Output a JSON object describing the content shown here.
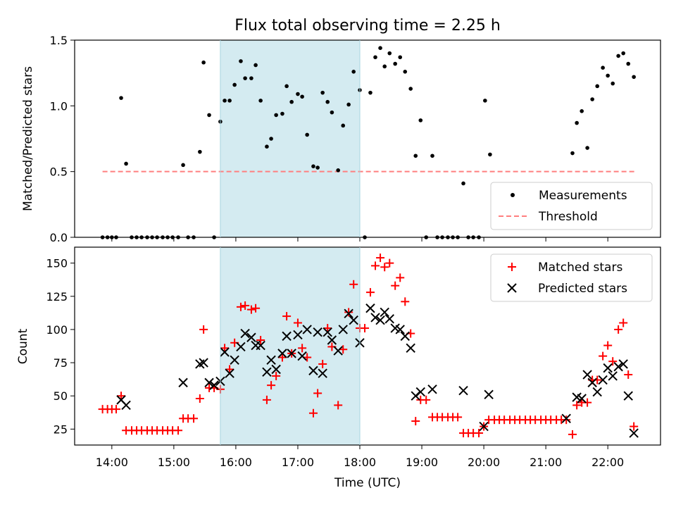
{
  "chart_data": [
    {
      "type": "scatter",
      "title": "Flux total observing time = 2.25 h",
      "xlabel": "",
      "ylabel": "Matched/Predicted stars",
      "xlim_hours": [
        13.4,
        22.85
      ],
      "ylim": [
        0,
        1.5
      ],
      "yticks": [
        "0.0",
        "0.5",
        "1.0",
        "1.5"
      ],
      "shaded_span_hours": [
        15.75,
        18.0
      ],
      "shade_color": "#d4ebf1",
      "legend_position": "lower-right",
      "series": [
        {
          "name": "Measurements",
          "marker": "dot",
          "color": "#000000",
          "points": [
            [
              13.85,
              0
            ],
            [
              13.93,
              0
            ],
            [
              14.0,
              0
            ],
            [
              14.07,
              0
            ],
            [
              14.15,
              1.06
            ],
            [
              14.23,
              0.56
            ],
            [
              14.32,
              0
            ],
            [
              14.4,
              0
            ],
            [
              14.48,
              0
            ],
            [
              14.57,
              0
            ],
            [
              14.65,
              0
            ],
            [
              14.73,
              0
            ],
            [
              14.82,
              0
            ],
            [
              14.9,
              0
            ],
            [
              14.98,
              0
            ],
            [
              15.07,
              0
            ],
            [
              15.15,
              0.55
            ],
            [
              15.23,
              0
            ],
            [
              15.32,
              0
            ],
            [
              15.42,
              0.65
            ],
            [
              15.48,
              1.33
            ],
            [
              15.57,
              0.93
            ],
            [
              15.65,
              0
            ],
            [
              15.75,
              0.88
            ],
            [
              15.82,
              1.04
            ],
            [
              15.9,
              1.04
            ],
            [
              15.98,
              1.16
            ],
            [
              16.08,
              1.34
            ],
            [
              16.15,
              1.21
            ],
            [
              16.25,
              1.21
            ],
            [
              16.32,
              1.31
            ],
            [
              16.4,
              1.04
            ],
            [
              16.5,
              0.69
            ],
            [
              16.57,
              0.75
            ],
            [
              16.65,
              0.93
            ],
            [
              16.75,
              0.94
            ],
            [
              16.82,
              1.15
            ],
            [
              16.9,
              1.03
            ],
            [
              17.0,
              1.09
            ],
            [
              17.07,
              1.07
            ],
            [
              17.15,
              0.78
            ],
            [
              17.25,
              0.54
            ],
            [
              17.32,
              0.53
            ],
            [
              17.4,
              1.1
            ],
            [
              17.48,
              1.03
            ],
            [
              17.55,
              0.95
            ],
            [
              17.65,
              0.51
            ],
            [
              17.73,
              0.85
            ],
            [
              17.82,
              1.01
            ],
            [
              17.9,
              1.26
            ],
            [
              18.0,
              1.12
            ],
            [
              18.08,
              0
            ],
            [
              18.17,
              1.1
            ],
            [
              18.25,
              1.37
            ],
            [
              18.33,
              1.44
            ],
            [
              18.4,
              1.3
            ],
            [
              18.48,
              1.4
            ],
            [
              18.57,
              1.32
            ],
            [
              18.65,
              1.37
            ],
            [
              18.73,
              1.26
            ],
            [
              18.82,
              1.13
            ],
            [
              18.9,
              0.62
            ],
            [
              18.98,
              0.89
            ],
            [
              19.07,
              0
            ],
            [
              19.17,
              0.62
            ],
            [
              19.25,
              0
            ],
            [
              19.33,
              0
            ],
            [
              19.42,
              0
            ],
            [
              19.5,
              0
            ],
            [
              19.58,
              0
            ],
            [
              19.67,
              0.41
            ],
            [
              19.75,
              0
            ],
            [
              19.83,
              0
            ],
            [
              19.92,
              0
            ],
            [
              20.02,
              1.04
            ],
            [
              20.1,
              0.63
            ],
            [
              21.43,
              0.64
            ],
            [
              21.5,
              0.87
            ],
            [
              21.58,
              0.96
            ],
            [
              21.67,
              0.68
            ],
            [
              21.75,
              1.05
            ],
            [
              21.83,
              1.15
            ],
            [
              21.92,
              1.29
            ],
            [
              22.0,
              1.23
            ],
            [
              22.08,
              1.17
            ],
            [
              22.17,
              1.38
            ],
            [
              22.25,
              1.4
            ],
            [
              22.33,
              1.32
            ],
            [
              22.42,
              1.22
            ]
          ]
        },
        {
          "name": "Threshold",
          "marker": "dashed-line",
          "color": "#ff7f7f",
          "points": [
            [
              13.85,
              0.5
            ],
            [
              22.43,
              0.5
            ]
          ]
        }
      ]
    },
    {
      "type": "scatter",
      "title": "",
      "xlabel": "Time (UTC)",
      "ylabel": "Count",
      "xlim_hours": [
        13.4,
        22.85
      ],
      "ylim": [
        13,
        162
      ],
      "yticks": [
        "25",
        "50",
        "75",
        "100",
        "125",
        "150"
      ],
      "xticks": [
        "14:00",
        "15:00",
        "16:00",
        "17:00",
        "18:00",
        "19:00",
        "20:00",
        "21:00",
        "22:00"
      ],
      "shaded_span_hours": [
        15.75,
        18.0
      ],
      "shade_color": "#d4ebf1",
      "legend_position": "upper-right",
      "series": [
        {
          "name": "Matched stars",
          "marker": "plus",
          "color": "#ff0000",
          "points": [
            [
              13.85,
              40
            ],
            [
              13.93,
              40
            ],
            [
              14.0,
              40
            ],
            [
              14.07,
              40
            ],
            [
              14.15,
              50
            ],
            [
              14.23,
              24
            ],
            [
              14.32,
              24
            ],
            [
              14.4,
              24
            ],
            [
              14.48,
              24
            ],
            [
              14.57,
              24
            ],
            [
              14.65,
              24
            ],
            [
              14.73,
              24
            ],
            [
              14.82,
              24
            ],
            [
              14.9,
              24
            ],
            [
              14.98,
              24
            ],
            [
              15.07,
              24
            ],
            [
              15.15,
              33
            ],
            [
              15.23,
              33
            ],
            [
              15.32,
              33
            ],
            [
              15.42,
              48
            ],
            [
              15.48,
              100
            ],
            [
              15.57,
              56
            ],
            [
              15.65,
              56
            ],
            [
              15.75,
              55
            ],
            [
              15.82,
              86
            ],
            [
              15.9,
              70
            ],
            [
              15.98,
              90
            ],
            [
              16.08,
              117
            ],
            [
              16.15,
              118
            ],
            [
              16.25,
              115
            ],
            [
              16.32,
              116
            ],
            [
              16.4,
              92
            ],
            [
              16.5,
              47
            ],
            [
              16.57,
              58
            ],
            [
              16.65,
              65
            ],
            [
              16.75,
              79
            ],
            [
              16.82,
              110
            ],
            [
              16.9,
              82
            ],
            [
              17.0,
              105
            ],
            [
              17.07,
              86
            ],
            [
              17.15,
              79
            ],
            [
              17.25,
              37
            ],
            [
              17.32,
              52
            ],
            [
              17.4,
              74
            ],
            [
              17.48,
              101
            ],
            [
              17.55,
              87
            ],
            [
              17.65,
              43
            ],
            [
              17.73,
              85
            ],
            [
              17.82,
              113
            ],
            [
              17.9,
              134
            ],
            [
              18.0,
              101
            ],
            [
              18.08,
              101
            ],
            [
              18.17,
              128
            ],
            [
              18.25,
              148
            ],
            [
              18.33,
              154
            ],
            [
              18.4,
              147
            ],
            [
              18.48,
              150
            ],
            [
              18.57,
              133
            ],
            [
              18.65,
              139
            ],
            [
              18.73,
              121
            ],
            [
              18.82,
              97
            ],
            [
              18.9,
              31
            ],
            [
              18.98,
              47
            ],
            [
              19.07,
              47
            ],
            [
              19.17,
              34
            ],
            [
              19.25,
              34
            ],
            [
              19.33,
              34
            ],
            [
              19.42,
              34
            ],
            [
              19.5,
              34
            ],
            [
              19.58,
              34
            ],
            [
              19.67,
              22
            ],
            [
              19.75,
              22
            ],
            [
              19.83,
              22
            ],
            [
              19.92,
              22
            ],
            [
              20.0,
              27
            ],
            [
              20.08,
              32
            ],
            [
              20.17,
              32
            ],
            [
              20.25,
              32
            ],
            [
              20.33,
              32
            ],
            [
              20.42,
              32
            ],
            [
              20.5,
              32
            ],
            [
              20.58,
              32
            ],
            [
              20.67,
              32
            ],
            [
              20.75,
              32
            ],
            [
              20.83,
              32
            ],
            [
              20.92,
              32
            ],
            [
              21.0,
              32
            ],
            [
              21.08,
              32
            ],
            [
              21.17,
              32
            ],
            [
              21.25,
              32
            ],
            [
              21.33,
              32
            ],
            [
              21.43,
              21
            ],
            [
              21.5,
              43
            ],
            [
              21.58,
              45
            ],
            [
              21.67,
              45
            ],
            [
              21.75,
              62
            ],
            [
              21.83,
              62
            ],
            [
              21.92,
              80
            ],
            [
              22.0,
              88
            ],
            [
              22.08,
              76
            ],
            [
              22.17,
              100
            ],
            [
              22.25,
              105
            ],
            [
              22.33,
              66
            ],
            [
              22.42,
              27
            ]
          ]
        },
        {
          "name": "Predicted stars",
          "marker": "x",
          "color": "#000000",
          "points": [
            [
              14.15,
              47
            ],
            [
              14.23,
              43
            ],
            [
              15.15,
              60
            ],
            [
              15.42,
              74
            ],
            [
              15.48,
              75
            ],
            [
              15.57,
              60
            ],
            [
              15.65,
              58
            ],
            [
              15.75,
              61
            ],
            [
              15.82,
              83
            ],
            [
              15.9,
              67
            ],
            [
              15.98,
              77
            ],
            [
              16.08,
              87
            ],
            [
              16.15,
              97
            ],
            [
              16.25,
              94
            ],
            [
              16.32,
              88
            ],
            [
              16.4,
              88
            ],
            [
              16.5,
              68
            ],
            [
              16.57,
              77
            ],
            [
              16.65,
              70
            ],
            [
              16.75,
              82
            ],
            [
              16.82,
              95
            ],
            [
              16.9,
              82
            ],
            [
              17.0,
              96
            ],
            [
              17.07,
              80
            ],
            [
              17.15,
              100
            ],
            [
              17.25,
              69
            ],
            [
              17.32,
              98
            ],
            [
              17.4,
              67
            ],
            [
              17.48,
              98
            ],
            [
              17.55,
              92
            ],
            [
              17.65,
              84
            ],
            [
              17.73,
              100
            ],
            [
              17.82,
              112
            ],
            [
              17.9,
              107
            ],
            [
              18.0,
              90
            ],
            [
              18.17,
              116
            ],
            [
              18.25,
              109
            ],
            [
              18.33,
              107
            ],
            [
              18.4,
              113
            ],
            [
              18.48,
              108
            ],
            [
              18.57,
              101
            ],
            [
              18.65,
              100
            ],
            [
              18.73,
              95
            ],
            [
              18.82,
              86
            ],
            [
              18.9,
              50
            ],
            [
              18.98,
              53
            ],
            [
              19.17,
              55
            ],
            [
              19.67,
              54
            ],
            [
              20.0,
              27
            ],
            [
              20.08,
              51
            ],
            [
              21.33,
              33
            ],
            [
              21.5,
              49
            ],
            [
              21.58,
              48
            ],
            [
              21.67,
              66
            ],
            [
              21.75,
              60
            ],
            [
              21.83,
              53
            ],
            [
              21.92,
              62
            ],
            [
              22.0,
              71
            ],
            [
              22.08,
              65
            ],
            [
              22.17,
              72
            ],
            [
              22.25,
              74
            ],
            [
              22.33,
              50
            ],
            [
              22.42,
              22
            ]
          ]
        }
      ]
    }
  ]
}
